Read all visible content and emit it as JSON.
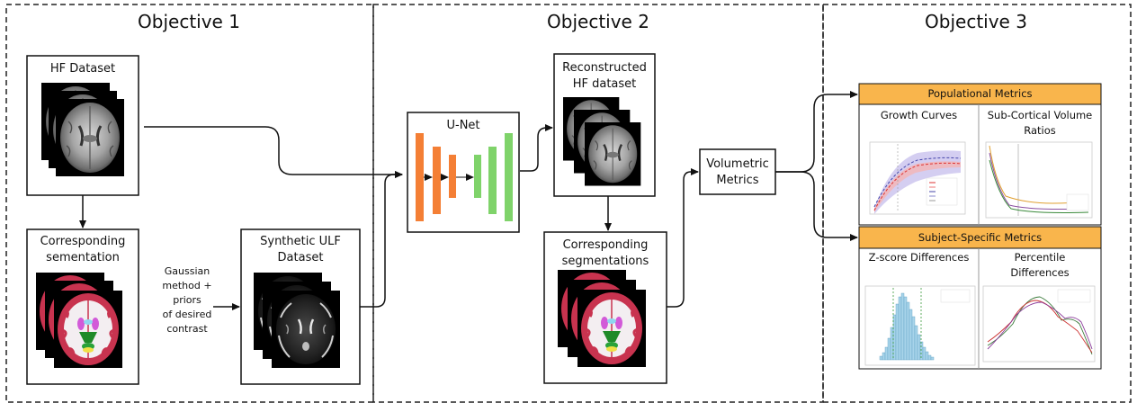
{
  "objectives": {
    "obj1": "Objective 1",
    "obj2": "Objective 2",
    "obj3": "Objective 3"
  },
  "obj1": {
    "hf_dataset": "HF Dataset",
    "seg_line1": "Corresponding",
    "seg_line2": "sementation",
    "method_lines": [
      "Gaussian",
      "method +",
      "priors",
      "of desired",
      "contrast"
    ],
    "ulf_line1": "Synthetic ULF",
    "ulf_line2": "Dataset"
  },
  "obj2": {
    "unet": "U-Net",
    "recon_lines": [
      "Reconstructed",
      "HF dataset"
    ],
    "seg_lines": [
      "Corresponding",
      "segmentations"
    ],
    "vol_lines": [
      "Volumetric",
      "Metrics"
    ]
  },
  "obj3": {
    "populational": "Populational Metrics",
    "growth": "Growth Curves",
    "subcortical_lines": [
      "Sub-Cortical Volume",
      "Ratios"
    ],
    "subject": "Subject-Specific Metrics",
    "zscore": "Z-score Differences",
    "percentile_lines": [
      "Percentile",
      "Differences"
    ]
  },
  "colors": {
    "header_orange": "#f9b54c",
    "unet_orange": "#f47f35",
    "unet_green": "#7fd36a",
    "wm_red": "#c8334f",
    "hist_blue": "#a8d4ea",
    "growth_band": "#cfc9ef"
  }
}
